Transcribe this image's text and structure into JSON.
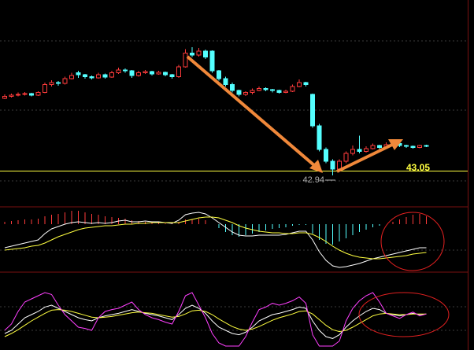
{
  "chart_data": [
    {
      "type": "candlestick",
      "ylim": [
        42.6,
        46.6
      ],
      "up_color": "#ff3b3b",
      "down_color": "#54ffff",
      "price_line": 43.05,
      "price_line_color": "#ffff40",
      "low_marker": 42.94,
      "candles": [
        [
          44.9,
          45.0,
          44.88,
          44.95
        ],
        [
          44.95,
          45.02,
          44.92,
          44.98
        ],
        [
          44.98,
          45.05,
          44.95,
          45.0
        ],
        [
          45.0,
          45.06,
          44.97,
          45.02
        ],
        [
          45.02,
          45.04,
          44.95,
          44.98
        ],
        [
          44.98,
          45.08,
          44.96,
          45.05
        ],
        [
          45.05,
          45.3,
          45.03,
          45.25
        ],
        [
          45.25,
          45.36,
          45.2,
          45.3
        ],
        [
          45.3,
          45.34,
          45.22,
          45.28
        ],
        [
          45.28,
          45.45,
          45.25,
          45.4
        ],
        [
          45.4,
          45.55,
          45.38,
          45.48
        ],
        [
          45.55,
          45.6,
          45.42,
          45.5
        ],
        [
          45.5,
          45.52,
          45.4,
          45.45
        ],
        [
          45.45,
          45.48,
          45.38,
          45.42
        ],
        [
          45.42,
          45.55,
          45.4,
          45.5
        ],
        [
          45.5,
          45.53,
          45.4,
          45.44
        ],
        [
          45.44,
          45.6,
          45.42,
          45.55
        ],
        [
          45.55,
          45.68,
          45.52,
          45.62
        ],
        [
          45.62,
          45.66,
          45.55,
          45.6
        ],
        [
          45.6,
          45.62,
          45.42,
          45.48
        ],
        [
          45.48,
          45.6,
          45.45,
          45.55
        ],
        [
          45.55,
          45.62,
          45.52,
          45.58
        ],
        [
          45.58,
          45.6,
          45.48,
          45.52
        ],
        [
          45.52,
          45.6,
          45.5,
          45.56
        ],
        [
          45.56,
          45.58,
          45.46,
          45.5
        ],
        [
          45.5,
          45.52,
          45.4,
          45.45
        ],
        [
          45.45,
          45.75,
          45.42,
          45.7
        ],
        [
          45.7,
          46.15,
          45.68,
          46.05
        ],
        [
          46.05,
          46.2,
          45.95,
          46.0
        ],
        [
          46.0,
          46.18,
          45.96,
          46.1
        ],
        [
          46.1,
          46.14,
          45.9,
          45.95
        ],
        [
          46.1,
          46.12,
          45.55,
          45.6
        ],
        [
          45.6,
          45.62,
          45.35,
          45.4
        ],
        [
          45.4,
          45.45,
          45.2,
          45.25
        ],
        [
          45.25,
          45.3,
          45.05,
          45.1
        ],
        [
          45.1,
          45.12,
          44.95,
          45.0
        ],
        [
          45.0,
          45.08,
          44.96,
          45.05
        ],
        [
          45.05,
          45.15,
          45.0,
          45.1
        ],
        [
          45.1,
          45.2,
          45.08,
          45.15
        ],
        [
          45.15,
          45.18,
          45.08,
          45.12
        ],
        [
          45.12,
          45.14,
          45.05,
          45.1
        ],
        [
          45.1,
          45.12,
          45.02,
          45.05
        ],
        [
          45.05,
          45.12,
          45.03,
          45.08
        ],
        [
          45.08,
          45.25,
          45.06,
          45.2
        ],
        [
          45.2,
          45.38,
          45.18,
          45.3
        ],
        [
          45.3,
          45.32,
          45.2,
          45.25
        ],
        [
          45.0,
          45.02,
          44.15,
          44.2
        ],
        [
          44.2,
          44.25,
          43.55,
          43.6
        ],
        [
          43.6,
          43.65,
          43.25,
          43.3
        ],
        [
          43.3,
          43.35,
          42.94,
          43.1
        ],
        [
          43.1,
          43.35,
          43.05,
          43.3
        ],
        [
          43.3,
          43.55,
          43.25,
          43.5
        ],
        [
          43.5,
          43.7,
          43.45,
          43.6
        ],
        [
          43.6,
          43.95,
          43.5,
          43.55
        ],
        [
          43.55,
          43.68,
          43.52,
          43.62
        ],
        [
          43.62,
          43.75,
          43.6,
          43.7
        ],
        [
          43.7,
          43.72,
          43.6,
          43.65
        ],
        [
          43.65,
          43.78,
          43.62,
          43.72
        ],
        [
          43.72,
          43.8,
          43.7,
          43.75
        ],
        [
          43.75,
          43.78,
          43.66,
          43.7
        ],
        [
          43.7,
          43.72,
          43.64,
          43.68
        ],
        [
          43.68,
          43.7,
          43.62,
          43.65
        ],
        [
          43.65,
          43.72,
          43.63,
          43.7
        ],
        [
          43.7,
          43.72,
          43.66,
          43.68
        ]
      ]
    },
    {
      "type": "macd",
      "ylim": [
        -0.6,
        0.4
      ],
      "up_color": "#ff3b3b",
      "down_color": "#54ffff",
      "histogram": [
        0.03,
        0.04,
        0.05,
        0.06,
        0.06,
        0.07,
        0.1,
        0.12,
        0.13,
        0.15,
        0.17,
        0.17,
        0.15,
        0.13,
        0.12,
        0.1,
        0.09,
        0.08,
        0.07,
        0.05,
        0.04,
        0.03,
        0.02,
        0.02,
        0.01,
        0.01,
        0.03,
        0.06,
        0.06,
        0.07,
        0.05,
        0.0,
        -0.05,
        -0.1,
        -0.14,
        -0.16,
        -0.14,
        -0.12,
        -0.1,
        -0.08,
        -0.06,
        -0.05,
        -0.04,
        -0.02,
        -0.01,
        -0.01,
        -0.12,
        -0.2,
        -0.25,
        -0.26,
        -0.22,
        -0.18,
        -0.14,
        -0.1,
        -0.07,
        -0.04,
        -0.02,
        0.0,
        0.03,
        0.06,
        0.09,
        0.12,
        0.13,
        0.1
      ],
      "series": [
        {
          "color": "#ffffff",
          "values": [
            -0.3,
            -0.28,
            -0.26,
            -0.24,
            -0.22,
            -0.2,
            -0.12,
            -0.06,
            -0.03,
            0.0,
            0.02,
            0.03,
            0.02,
            0.01,
            0.02,
            0.01,
            0.02,
            0.04,
            0.05,
            0.03,
            0.03,
            0.04,
            0.03,
            0.03,
            0.02,
            0.01,
            0.05,
            0.12,
            0.14,
            0.15,
            0.13,
            0.08,
            0.02,
            -0.04,
            -0.1,
            -0.14,
            -0.15,
            -0.15,
            -0.14,
            -0.14,
            -0.14,
            -0.14,
            -0.13,
            -0.11,
            -0.09,
            -0.09,
            -0.2,
            -0.35,
            -0.46,
            -0.53,
            -0.55,
            -0.54,
            -0.52,
            -0.5,
            -0.47,
            -0.44,
            -0.42,
            -0.4,
            -0.38,
            -0.36,
            -0.34,
            -0.32,
            -0.3,
            -0.3
          ]
        },
        {
          "color": "#ffff40",
          "values": [
            -0.33,
            -0.32,
            -0.31,
            -0.3,
            -0.28,
            -0.27,
            -0.24,
            -0.2,
            -0.16,
            -0.13,
            -0.1,
            -0.07,
            -0.05,
            -0.04,
            -0.03,
            -0.02,
            -0.02,
            -0.01,
            0.0,
            0.0,
            0.01,
            0.01,
            0.02,
            0.02,
            0.02,
            0.02,
            0.02,
            0.04,
            0.06,
            0.08,
            0.09,
            0.09,
            0.08,
            0.05,
            0.02,
            -0.02,
            -0.05,
            -0.07,
            -0.09,
            -0.1,
            -0.11,
            -0.11,
            -0.12,
            -0.12,
            -0.11,
            -0.11,
            -0.13,
            -0.17,
            -0.22,
            -0.28,
            -0.33,
            -0.37,
            -0.4,
            -0.42,
            -0.43,
            -0.44,
            -0.44,
            -0.43,
            -0.42,
            -0.41,
            -0.4,
            -0.38,
            -0.37,
            -0.36
          ]
        }
      ]
    },
    {
      "type": "kdj",
      "ylim": [
        0,
        100
      ],
      "series": [
        {
          "color": "#ffffff",
          "values": [
            20,
            25,
            35,
            45,
            50,
            55,
            62,
            65,
            60,
            55,
            50,
            45,
            42,
            40,
            45,
            48,
            50,
            52,
            55,
            58,
            55,
            52,
            50,
            48,
            45,
            42,
            50,
            60,
            65,
            60,
            52,
            40,
            30,
            25,
            20,
            18,
            22,
            30,
            40,
            45,
            50,
            52,
            55,
            58,
            62,
            60,
            40,
            25,
            15,
            12,
            18,
            30,
            40,
            48,
            55,
            60,
            58,
            52,
            50,
            48,
            50,
            52,
            50,
            51
          ]
        },
        {
          "color": "#ffff40",
          "values": [
            15,
            20,
            26,
            33,
            40,
            46,
            52,
            57,
            58,
            57,
            55,
            52,
            49,
            46,
            45,
            46,
            47,
            49,
            51,
            53,
            54,
            53,
            52,
            50,
            48,
            46,
            47,
            51,
            56,
            57,
            55,
            50,
            43,
            37,
            31,
            27,
            25,
            27,
            31,
            36,
            41,
            45,
            48,
            51,
            55,
            56,
            51,
            42,
            33,
            26,
            23,
            25,
            30,
            36,
            42,
            48,
            51,
            52,
            51,
            50,
            50,
            51,
            51,
            51
          ]
        },
        {
          "color": "#ff40ff",
          "values": [
            25,
            35,
            55,
            70,
            75,
            80,
            85,
            82,
            65,
            50,
            40,
            30,
            28,
            25,
            45,
            55,
            58,
            60,
            65,
            70,
            58,
            50,
            45,
            42,
            38,
            35,
            55,
            80,
            85,
            65,
            45,
            20,
            5,
            0,
            0,
            0,
            15,
            38,
            58,
            62,
            68,
            65,
            68,
            72,
            78,
            68,
            18,
            0,
            0,
            0,
            8,
            40,
            60,
            72,
            80,
            85,
            70,
            52,
            48,
            44,
            50,
            54,
            48,
            51
          ]
        }
      ]
    }
  ]
}
